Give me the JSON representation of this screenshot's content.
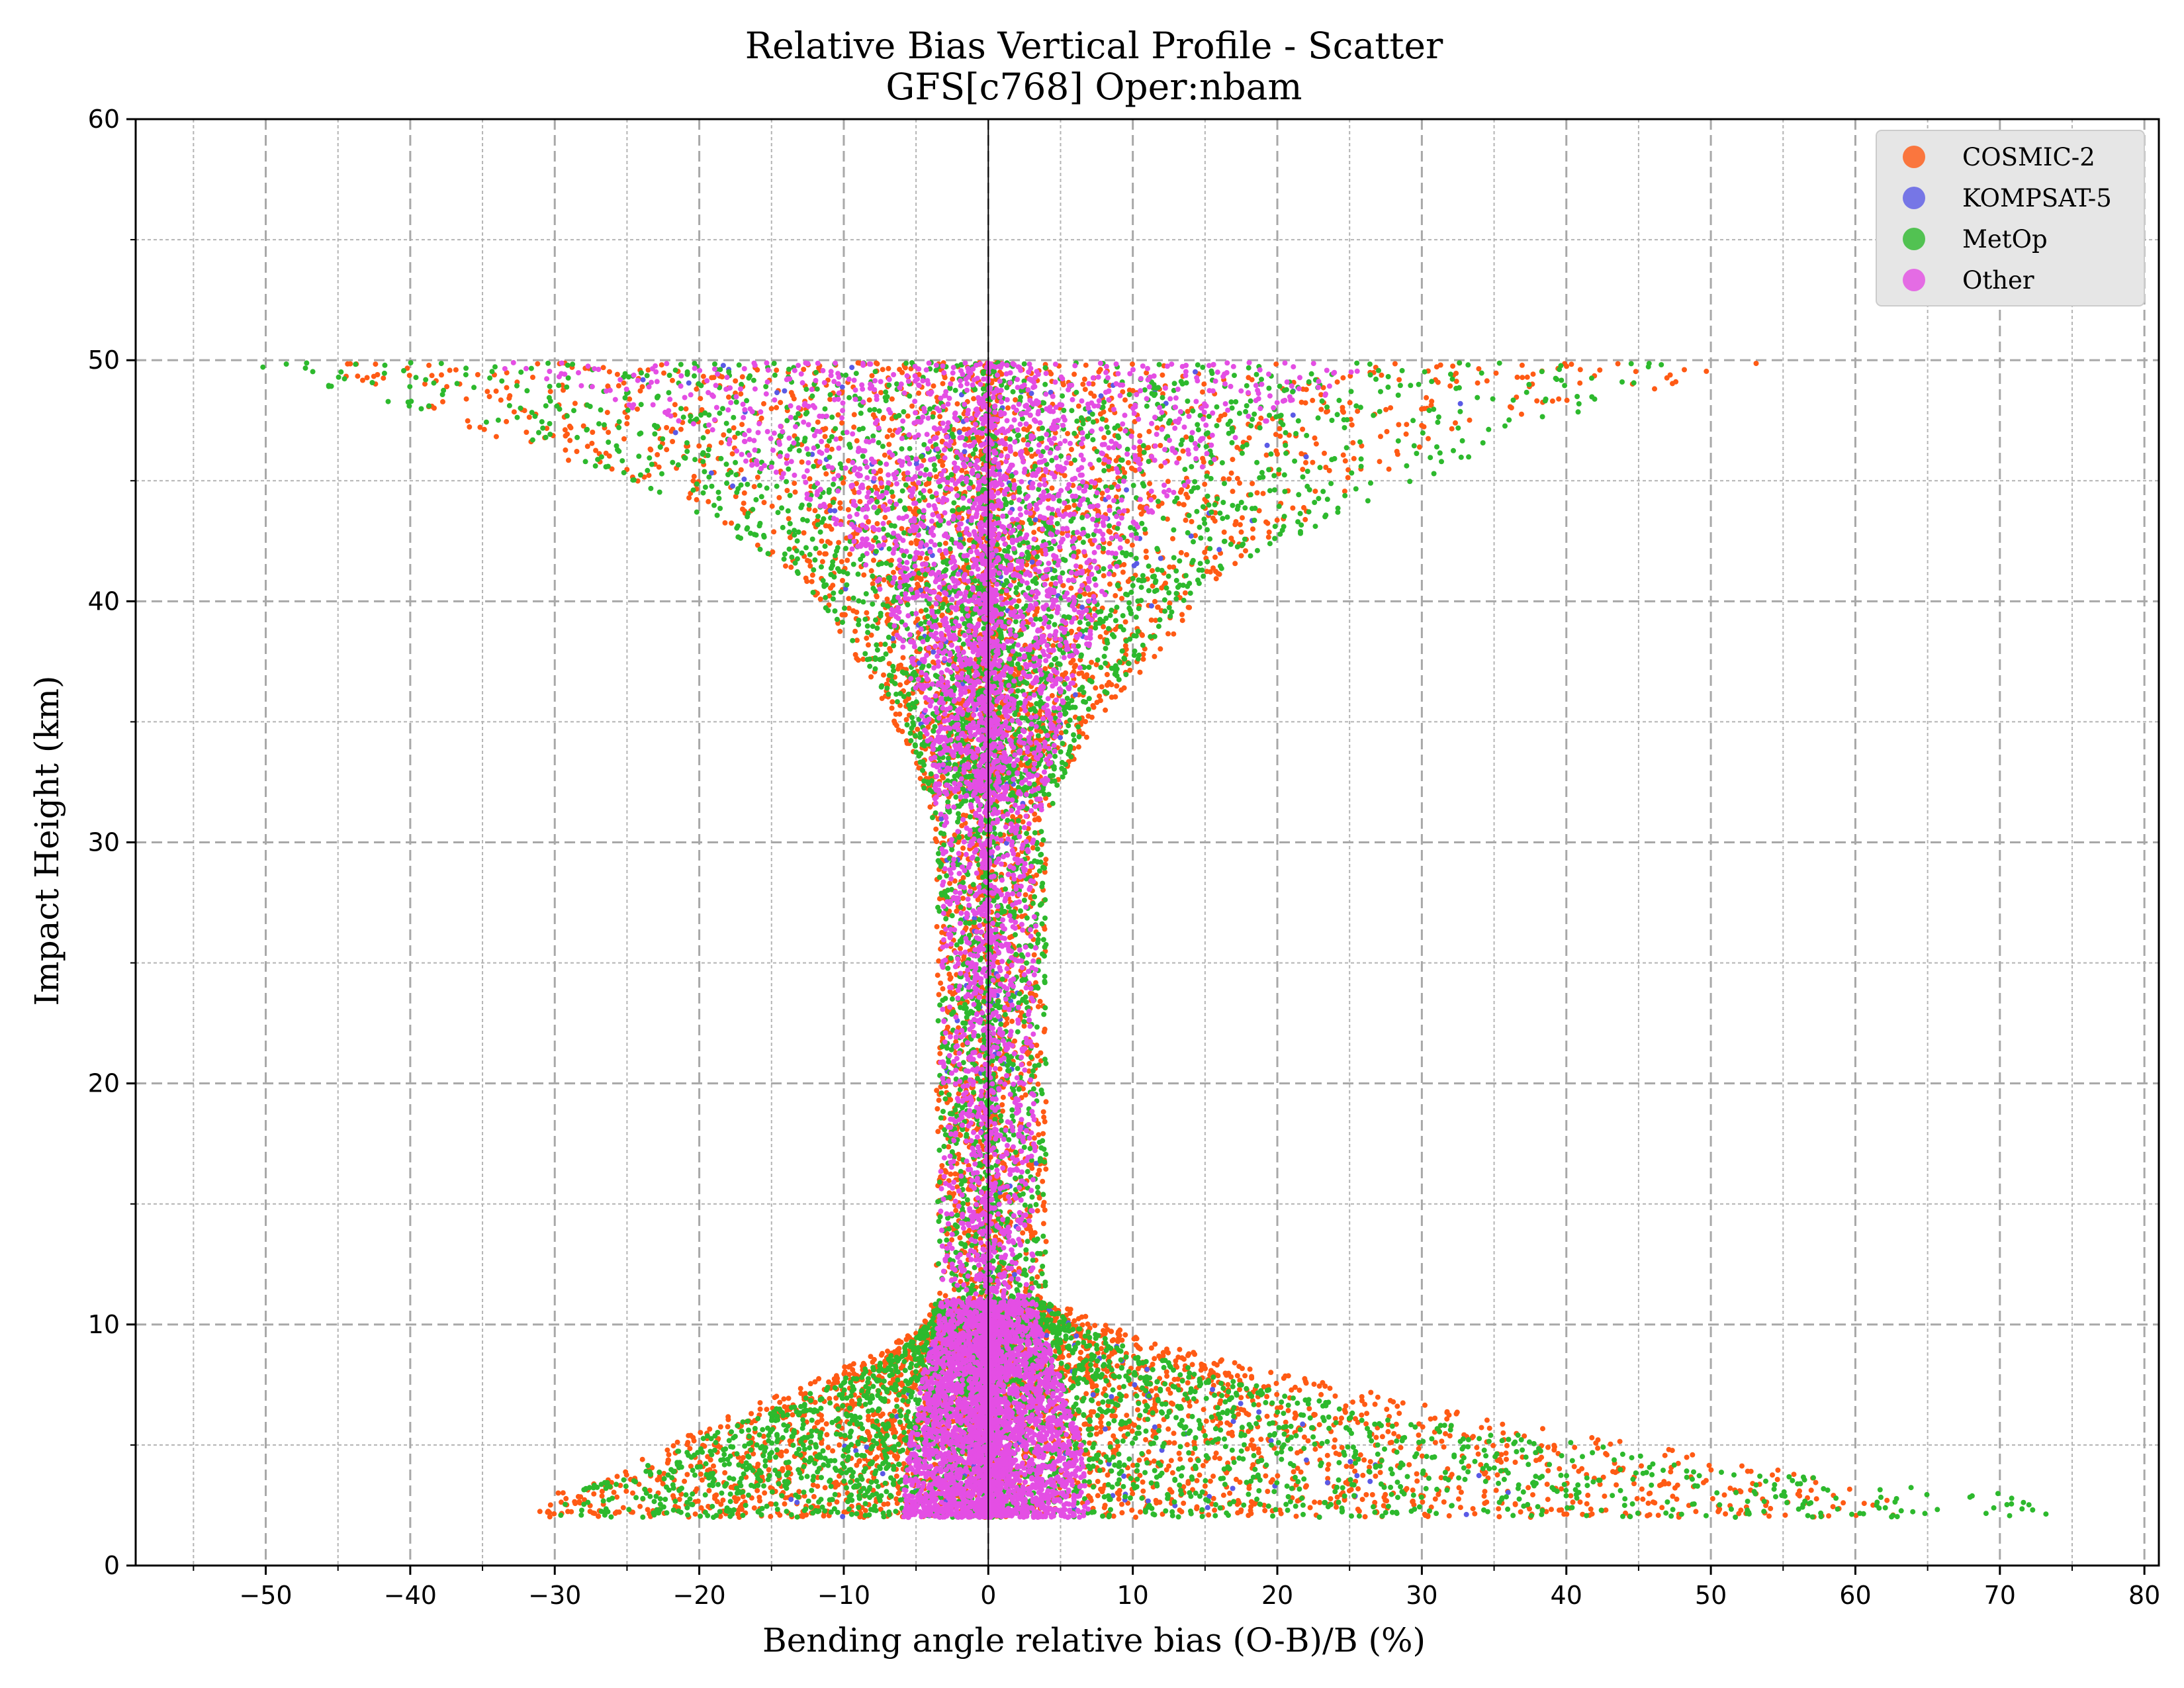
{
  "chart_data": {
    "type": "scatter",
    "title": "Relative Bias Vertical Profile - Scatter",
    "subtitle": "GFS[c768] Oper:nbam",
    "xlabel": "Bending angle relative bias (O-B)/B (%)",
    "ylabel": "Impact Height (km)",
    "xlim": [
      -59,
      81
    ],
    "ylim": [
      0,
      60
    ],
    "xticks": [
      -50,
      -40,
      -30,
      -20,
      -10,
      0,
      10,
      20,
      30,
      40,
      50,
      60,
      70,
      80
    ],
    "xtick_labels": [
      "−50",
      "−40",
      "−30",
      "−20",
      "−10",
      "0",
      "10",
      "20",
      "30",
      "40",
      "50",
      "60",
      "70",
      "80"
    ],
    "yticks": [
      0,
      10,
      20,
      30,
      40,
      50,
      60
    ],
    "ytick_labels": [
      "0",
      "10",
      "20",
      "30",
      "40",
      "50",
      "60"
    ],
    "x_minor_step": 5,
    "y_minor_step": 5,
    "grid": true,
    "zero_line_x": 0,
    "legend_position": "top-right",
    "series": [
      {
        "name": "COSMIC-2",
        "color": "#ff5a14",
        "envelope": [
          [
            2.0,
            -31.5,
            63
          ],
          [
            3.0,
            -30,
            62
          ],
          [
            4.0,
            -26,
            55
          ],
          [
            5.0,
            -22,
            46
          ],
          [
            6.0,
            -19,
            35
          ],
          [
            7.0,
            -15,
            28
          ],
          [
            8.0,
            -11,
            20
          ],
          [
            9.0,
            -7,
            14
          ],
          [
            10.0,
            -4.5,
            8
          ],
          [
            11.0,
            -3.8,
            4.5
          ],
          [
            12.0,
            -3.6,
            4.0
          ],
          [
            30.0,
            -3.6,
            4.0
          ],
          [
            32.0,
            -4.5,
            4.5
          ],
          [
            35.0,
            -6.5,
            7.5
          ],
          [
            38.0,
            -9.5,
            12
          ],
          [
            41.0,
            -13,
            16
          ],
          [
            44.0,
            -20,
            24
          ],
          [
            47.0,
            -35,
            32
          ],
          [
            49.9,
            -47,
            55
          ]
        ]
      },
      {
        "name": "KOMPSAT-5",
        "color": "#5a5ae6",
        "envelope": [
          [
            2.0,
            -15,
            45
          ],
          [
            5.0,
            -10,
            30
          ],
          [
            8.0,
            -5,
            12
          ],
          [
            11.0,
            -3.0,
            3.5
          ],
          [
            30.0,
            -3.0,
            3.5
          ],
          [
            35.0,
            -5,
            6
          ],
          [
            41.0,
            -12,
            14
          ],
          [
            47.0,
            -22,
            25
          ],
          [
            49.9,
            -30,
            44
          ]
        ]
      },
      {
        "name": "MetOp",
        "color": "#2db92d",
        "envelope": [
          [
            2.0,
            -30,
            75
          ],
          [
            3.0,
            -29,
            70
          ],
          [
            4.0,
            -24,
            50
          ],
          [
            5.0,
            -21,
            42
          ],
          [
            6.0,
            -17,
            30
          ],
          [
            7.0,
            -13,
            22
          ],
          [
            8.0,
            -9,
            15
          ],
          [
            9.0,
            -6,
            10
          ],
          [
            10.0,
            -4.2,
            6
          ],
          [
            11.0,
            -3.6,
            4
          ],
          [
            12.0,
            -3.5,
            4.0
          ],
          [
            30.0,
            -3.5,
            4.0
          ],
          [
            32.0,
            -4.3,
            4.6
          ],
          [
            35.0,
            -6,
            7
          ],
          [
            38.0,
            -9,
            11
          ],
          [
            41.0,
            -13,
            15
          ],
          [
            44.0,
            -21,
            26
          ],
          [
            47.0,
            -33,
            38
          ],
          [
            49.9,
            -53,
            48
          ]
        ]
      },
      {
        "name": "Other",
        "color": "#e44ee4",
        "envelope": [
          [
            2.0,
            -6,
            7
          ],
          [
            5.0,
            -5.5,
            6.5
          ],
          [
            8.0,
            -4.5,
            5
          ],
          [
            10.0,
            -3.5,
            3.5
          ],
          [
            11.0,
            -3.3,
            3.3
          ],
          [
            30.0,
            -3.3,
            3.3
          ],
          [
            32.0,
            -3.8,
            4
          ],
          [
            35.0,
            -4.5,
            5
          ],
          [
            38.0,
            -6,
            7
          ],
          [
            41.0,
            -8,
            8.5
          ],
          [
            44.0,
            -12,
            12
          ],
          [
            47.0,
            -20,
            18
          ],
          [
            49.9,
            -35,
            28
          ]
        ]
      }
    ]
  }
}
